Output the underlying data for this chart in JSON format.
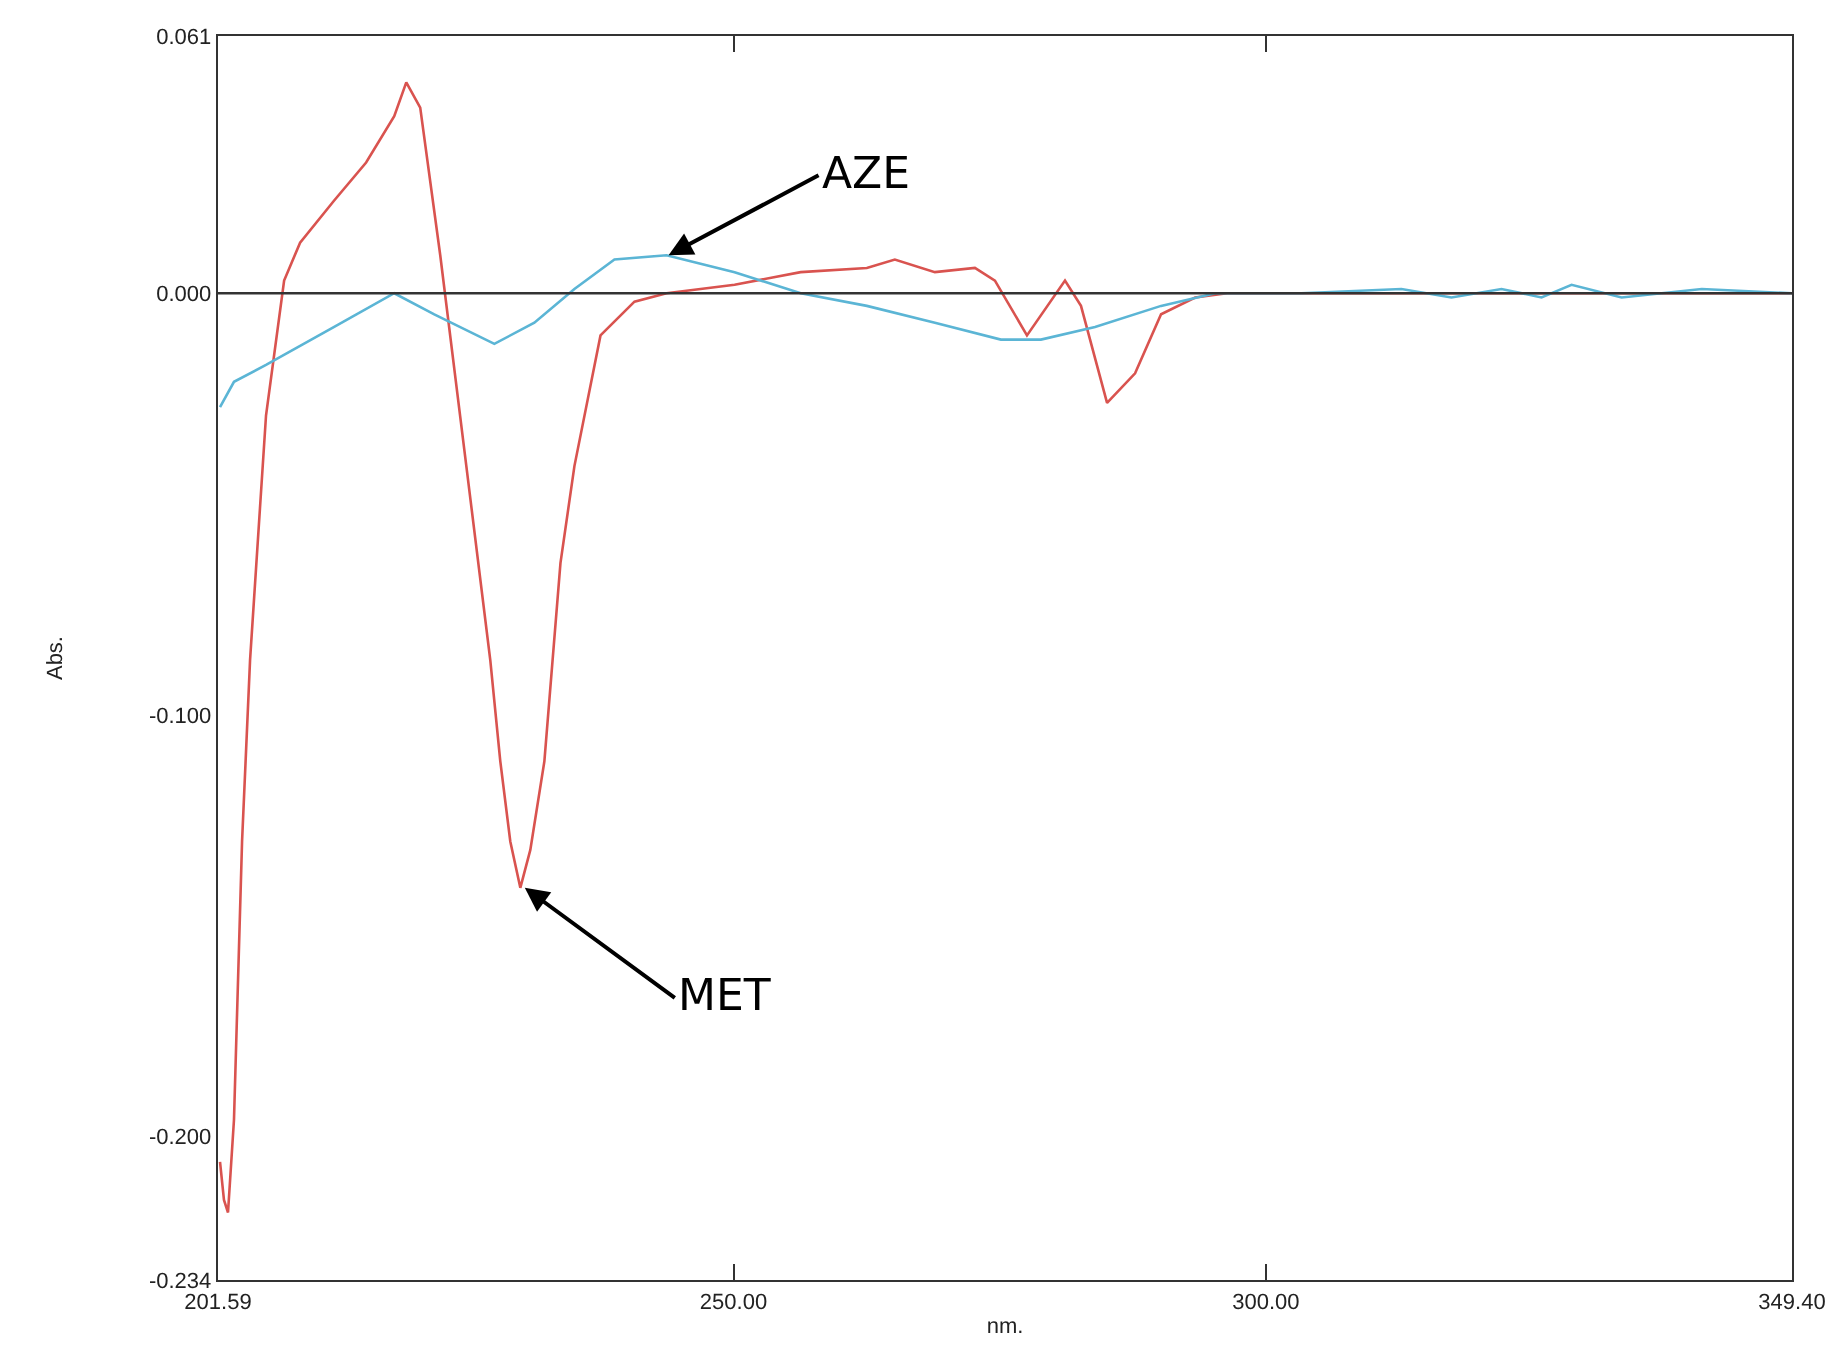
{
  "chart_data": {
    "type": "line",
    "xlabel": "nm.",
    "ylabel": "Abs.",
    "xlim": [
      201.59,
      349.4
    ],
    "xticks": [
      {
        "value": 201.59,
        "label": "201.59"
      },
      {
        "value": 250,
        "label": "250.00"
      },
      {
        "value": 300,
        "label": "300.00"
      },
      {
        "value": 349.4,
        "label": "349.40"
      }
    ],
    "ylim": [
      -0.234,
      0.061
    ],
    "yticks": [
      {
        "value": -0.234,
        "label": "-0.234"
      },
      {
        "value": -0.2,
        "label": "-0.200"
      },
      {
        "value": -0.1,
        "label": "-0.100"
      },
      {
        "value": 0,
        "label": "0.000"
      },
      {
        "value": 0.061,
        "label": "0.061"
      }
    ],
    "marker": "none",
    "line_style": "solid",
    "ref_lines": [
      {
        "axis": "y",
        "value": 0,
        "color": "#333333",
        "line_style": "solid"
      }
    ],
    "annotations": [
      {
        "text": "AZE",
        "x": 243.9,
        "y": 0.009
      },
      {
        "text": "MET",
        "x": 230.4,
        "y": -0.141
      }
    ],
    "series": [
      {
        "color": "#d9534f",
        "x": [
          201.78,
          202.15,
          202.53,
          203.09,
          203.85,
          204.6,
          206.1,
          207.8,
          209.3,
          212.5,
          215.5,
          218.14,
          219.27,
          220.58,
          222.46,
          224.91,
          227.16,
          228.1,
          229.04,
          229.98,
          230.92,
          232.24,
          233.75,
          235.06,
          237.51,
          240.7,
          243.71,
          250.1,
          256.31,
          262.52,
          265.15,
          268.91,
          272.67,
          274.55,
          277.56,
          281.13,
          282.63,
          285.08,
          287.71,
          290.15,
          293.35,
          296.36,
          349.4
        ],
        "values": [
          -0.206,
          -0.215,
          -0.218,
          -0.196,
          -0.13,
          -0.087,
          -0.029,
          0.003,
          0.012,
          0.022,
          0.031,
          0.042,
          0.05,
          0.044,
          0.009,
          -0.041,
          -0.087,
          -0.111,
          -0.13,
          -0.141,
          -0.132,
          -0.111,
          -0.064,
          -0.041,
          -0.01,
          -0.002,
          0.0,
          0.002,
          0.005,
          0.006,
          0.008,
          0.005,
          0.006,
          0.003,
          -0.01,
          0.003,
          -0.003,
          -0.026,
          -0.019,
          -0.005,
          -0.001,
          0.0,
          0.0
        ]
      },
      {
        "color": "#5bb5d5",
        "x": [
          201.78,
          203.09,
          206.1,
          212.5,
          218.14,
          221.9,
          227.54,
          231.3,
          235.06,
          238.82,
          243.71,
          250.1,
          256.31,
          262.52,
          268.91,
          275.11,
          278.87,
          283.95,
          290.15,
          295.23,
          303.32,
          312.72,
          317.42,
          322.12,
          325.88,
          328.7,
          333.4,
          340.93,
          349.4
        ],
        "values": [
          -0.027,
          -0.021,
          -0.017,
          -0.008,
          0.0,
          -0.005,
          -0.012,
          -0.007,
          0.001,
          0.008,
          0.009,
          0.005,
          0.0,
          -0.003,
          -0.007,
          -0.011,
          -0.011,
          -0.008,
          -0.003,
          0.0,
          0.0,
          0.001,
          -0.001,
          0.001,
          -0.001,
          0.002,
          -0.001,
          0.001,
          0.0
        ]
      }
    ]
  }
}
